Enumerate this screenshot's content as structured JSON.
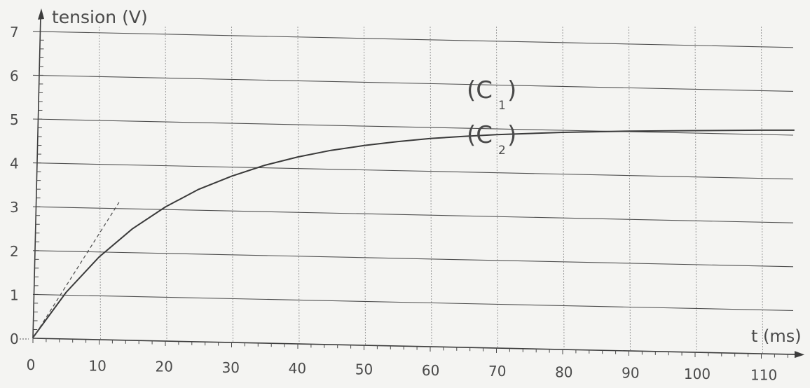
{
  "chart_data": {
    "type": "line",
    "ylabel": "tension (V)",
    "xlabel": "t (ms)",
    "xlim": [
      0,
      115
    ],
    "ylim": [
      0,
      7
    ],
    "x_ticks": [
      "0",
      "10",
      "20",
      "30",
      "40",
      "50",
      "60",
      "70",
      "80",
      "90",
      "100",
      "110"
    ],
    "y_ticks": [
      "0",
      "1",
      "2",
      "3",
      "4",
      "5",
      "6",
      "7"
    ],
    "grid": true,
    "series": [
      {
        "name": "(C1)",
        "label_main": "(C",
        "label_sub": "1",
        "label_end": ")",
        "type": "constant",
        "x": [
          0,
          115
        ],
        "y": [
          6.0,
          6.0
        ]
      },
      {
        "name": "(C2)",
        "label_main": "(C",
        "label_sub": "2",
        "label_end": ")",
        "type": "exponential",
        "x": [
          0,
          5,
          10,
          15,
          20,
          25,
          30,
          35,
          40,
          45,
          50,
          55,
          60,
          65,
          70,
          80,
          90,
          100,
          110,
          115
        ],
        "y": [
          0,
          1.03,
          1.84,
          2.48,
          2.98,
          3.38,
          3.68,
          3.93,
          4.12,
          4.27,
          4.38,
          4.47,
          4.54,
          4.59,
          4.63,
          4.68,
          4.71,
          4.72,
          4.73,
          4.73
        ]
      },
      {
        "name": "tangent",
        "type": "tangent-dashed",
        "x": [
          0,
          13
        ],
        "y": [
          0,
          3.1
        ]
      }
    ]
  }
}
